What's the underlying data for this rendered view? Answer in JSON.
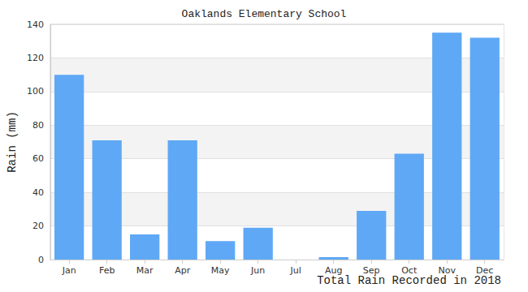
{
  "chart_data": {
    "type": "bar",
    "title": "Oaklands Elementary School",
    "xlabel": "Total Rain Recorded in 2018",
    "ylabel": "Rain (mm)",
    "categories": [
      "Jan",
      "Feb",
      "Mar",
      "Apr",
      "May",
      "Jun",
      "Jul",
      "Aug",
      "Sep",
      "Oct",
      "Nov",
      "Dec"
    ],
    "values": [
      110,
      71,
      15,
      71,
      11,
      19,
      0,
      1.5,
      29,
      63,
      135,
      132
    ],
    "color": "#5fa8f5",
    "ylim": [
      0,
      140
    ],
    "yticks": [
      0,
      20,
      40,
      60,
      80,
      100,
      120,
      140
    ],
    "grid": true
  }
}
